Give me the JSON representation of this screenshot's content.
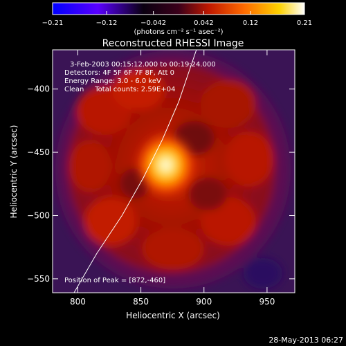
{
  "chart_data": {
    "type": "heatmap",
    "title": "Reconstructed RHESSI Image",
    "xlabel": "Heliocentric X (arcsec)",
    "ylabel": "Heliocentric Y (arcsec)",
    "xlim": [
      780,
      972
    ],
    "ylim": [
      -561,
      -369
    ],
    "x_ticks": [
      800,
      850,
      900,
      950
    ],
    "y_ticks": [
      -400,
      -450,
      -500,
      -550
    ],
    "colorbar": {
      "min": -0.21,
      "max": 0.21,
      "ticks": [
        "-0.21",
        "-0.12",
        "-0.042",
        "0.042",
        "0.12",
        "0.21"
      ],
      "units_label": "(photons cm⁻² s⁻¹ asec⁻²)",
      "colormap": [
        "#0000ff",
        "#5a00ff",
        "#0a0010",
        "#3a001a",
        "#c01800",
        "#ff6a00",
        "#ffd200",
        "#ffffff"
      ]
    },
    "annotations": {
      "time_range": "3-Feb-2003 00:15:12.000 to 00:19:24.000",
      "detectors": "Detectors: 4F 5F 6F 7F 8F, Att 0",
      "energy": "Energy Range: 3.0 - 6.0 keV",
      "clean": "Clean     Total counts: 2.59E+04",
      "peak": "Position of Peak = [872,-460]"
    },
    "peak": {
      "x": 872,
      "y": -460
    },
    "limb_curve": [
      [
        797,
        -561
      ],
      [
        815,
        -530
      ],
      [
        835,
        -500
      ],
      [
        852,
        -470
      ],
      [
        867,
        -440
      ],
      [
        880,
        -410
      ],
      [
        894,
        -369
      ]
    ]
  },
  "footer": {
    "date": "28-May-2013 06:27"
  }
}
